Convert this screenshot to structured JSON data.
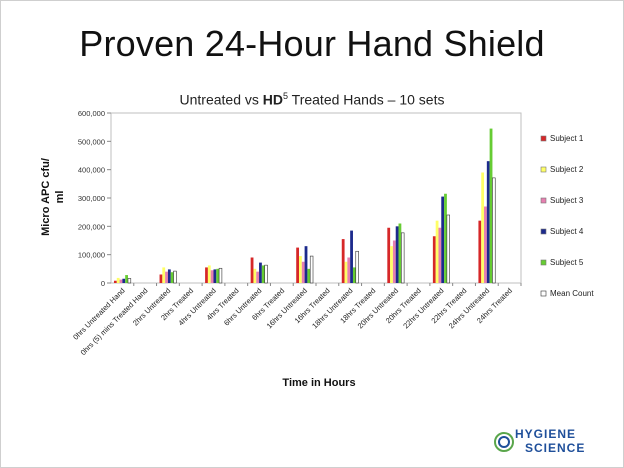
{
  "slide": {
    "title": "Proven 24-Hour Hand Shield"
  },
  "chart_title": {
    "prefix": "Untreated vs ",
    "bold": "HD",
    "sup": "5",
    "suffix": " Treated Hands – 10 sets"
  },
  "logo": {
    "line1": "HYGIENE",
    "line2": "SCIENCE"
  },
  "chart_data": {
    "type": "bar",
    "title": "Untreated vs HD5 Treated Hands – 10 sets",
    "xlabel": "Time in Hours",
    "ylabel": "Micro APC cfu/ ml",
    "ylim": [
      0,
      600000
    ],
    "yticks": [
      0,
      100000,
      200000,
      300000,
      400000,
      500000,
      600000
    ],
    "ytick_labels": [
      "0",
      "100,000",
      "200,000",
      "300,000",
      "400,000",
      "500,000",
      "600,000"
    ],
    "legend_position": "right",
    "categories": [
      "0hrs  Untreated Hand",
      "0hrs (5) mins Treated Hand",
      "2hrs Untreated",
      "2hrs Treated",
      "4hrs Untreated",
      "4hrs Treated",
      "6hrs Untreated",
      "6hrs Treated",
      "16hrs Untreated",
      "16hrs Treated",
      "18hrs Untreated",
      "18hrs Treated",
      "20hrs Untreated",
      "20hrs Treated",
      "22hrs Untreated",
      "22hrs Treated",
      "24hrs Untreated",
      "24hrs Treated"
    ],
    "series": [
      {
        "name": "Subject 1",
        "color": "#d62728",
        "values": [
          8000,
          0,
          30000,
          0,
          55000,
          0,
          90000,
          0,
          125000,
          0,
          155000,
          0,
          195000,
          0,
          165000,
          0,
          220000,
          0
        ]
      },
      {
        "name": "Subject 2",
        "color": "#ffff66",
        "values": [
          18000,
          0,
          55000,
          0,
          62000,
          0,
          50000,
          0,
          95000,
          0,
          75000,
          0,
          130000,
          0,
          220000,
          0,
          390000,
          0
        ]
      },
      {
        "name": "Subject 3",
        "color": "#e67fb0",
        "values": [
          12000,
          0,
          40000,
          0,
          45000,
          0,
          40000,
          0,
          75000,
          0,
          90000,
          0,
          150000,
          0,
          195000,
          0,
          270000,
          0
        ]
      },
      {
        "name": "Subject 4",
        "color": "#1c2a8c",
        "values": [
          15000,
          0,
          48000,
          0,
          48000,
          0,
          72000,
          0,
          130000,
          0,
          185000,
          0,
          200000,
          0,
          305000,
          0,
          430000,
          0
        ]
      },
      {
        "name": "Subject 5",
        "color": "#66cc33",
        "values": [
          28000,
          0,
          38000,
          0,
          50000,
          0,
          62000,
          0,
          50000,
          0,
          55000,
          0,
          210000,
          0,
          315000,
          0,
          545000,
          0
        ]
      },
      {
        "name": "Mean Count",
        "color": "#ffffff",
        "values": [
          16000,
          0,
          42000,
          0,
          52000,
          0,
          63000,
          0,
          95000,
          0,
          112000,
          0,
          177000,
          0,
          240000,
          0,
          371000,
          0
        ]
      }
    ]
  }
}
